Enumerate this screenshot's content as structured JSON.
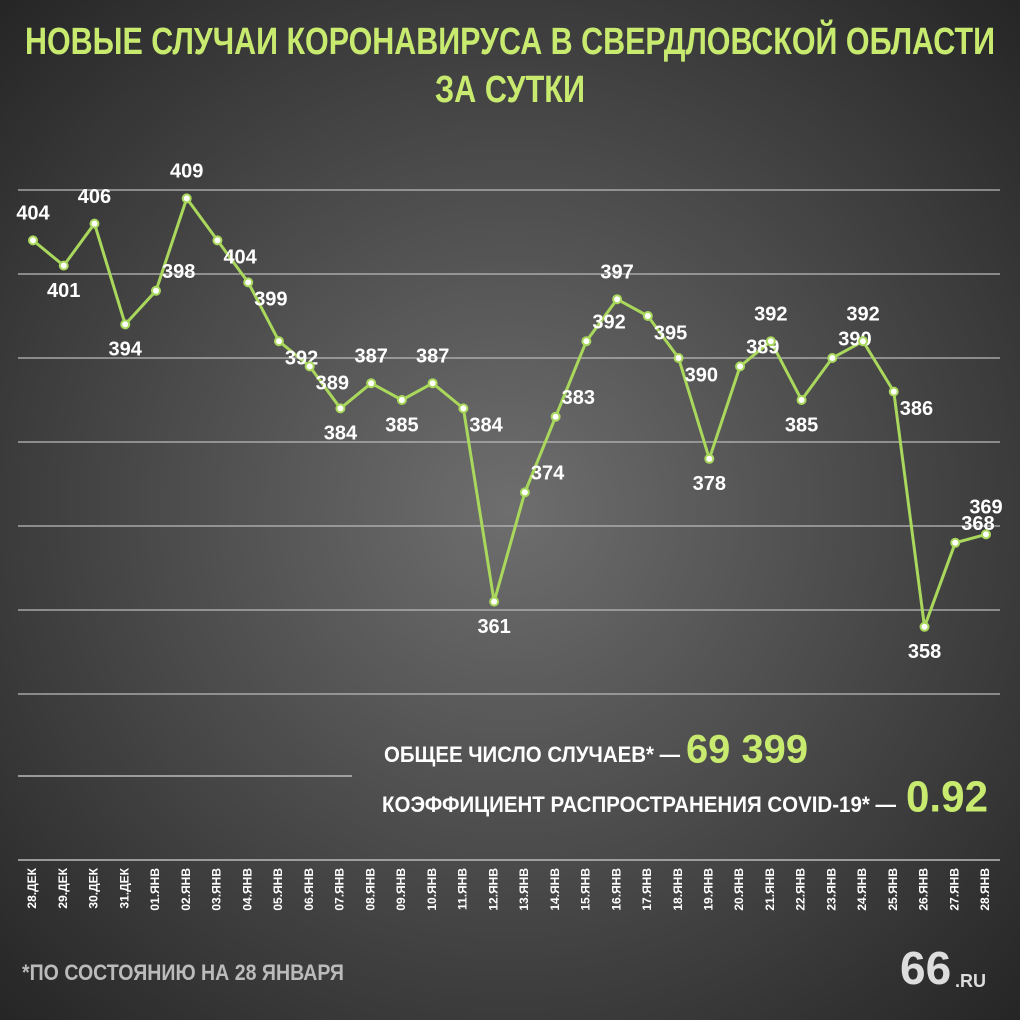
{
  "chart_data": {
    "type": "line",
    "title": [
      "НОВЫЕ СЛУЧАИ КОРОНАВИРУСА В СВЕРДЛОВСКОЙ ОБЛАСТИ",
      "ЗА СУТКИ"
    ],
    "categories": [
      "28.ДЕК",
      "29.ДЕК",
      "30.ДЕК",
      "31.ДЕК",
      "01.ЯНВ",
      "02.ЯНВ",
      "03.ЯНВ",
      "04.ЯНВ",
      "05.ЯНВ",
      "06.ЯНВ",
      "07.ЯНВ",
      "08.ЯНВ",
      "09.ЯНВ",
      "10.ЯНВ",
      "11.ЯНВ",
      "12.ЯНВ",
      "13.ЯНВ",
      "14.ЯНВ",
      "15.ЯНВ",
      "16.ЯНВ",
      "17.ЯНВ",
      "18.ЯНВ",
      "19.ЯНВ",
      "20.ЯНВ",
      "21.ЯНВ",
      "22.ЯНВ",
      "23.ЯНВ",
      "24.ЯНВ",
      "25.ЯНВ",
      "26.ЯНВ",
      "27.ЯНВ",
      "28.ЯНВ"
    ],
    "values": [
      404,
      401,
      406,
      394,
      398,
      409,
      404,
      399,
      392,
      389,
      384,
      387,
      385,
      387,
      384,
      361,
      374,
      383,
      392,
      397,
      395,
      390,
      378,
      389,
      392,
      385,
      390,
      392,
      386,
      358,
      368,
      369
    ],
    "color": "#a9d85c",
    "ylim": [
      350,
      410
    ],
    "yticks": [
      350,
      360,
      370,
      380,
      390,
      400,
      410
    ],
    "grid": true,
    "annotations": [
      {
        "label": "ОБЩЕЕ ЧИСЛО СЛУЧАЕВ* —",
        "value": "69 399"
      },
      {
        "label": "КОЭФФИЦИЕНТ РАСПРОСТРАНЕНИЯ COVID-19* —",
        "value": "0.92"
      }
    ],
    "footnote": "*ПО СОСТОЯНИЮ НА 28 ЯНВАРЯ",
    "logo": [
      "66",
      ".RU"
    ]
  }
}
